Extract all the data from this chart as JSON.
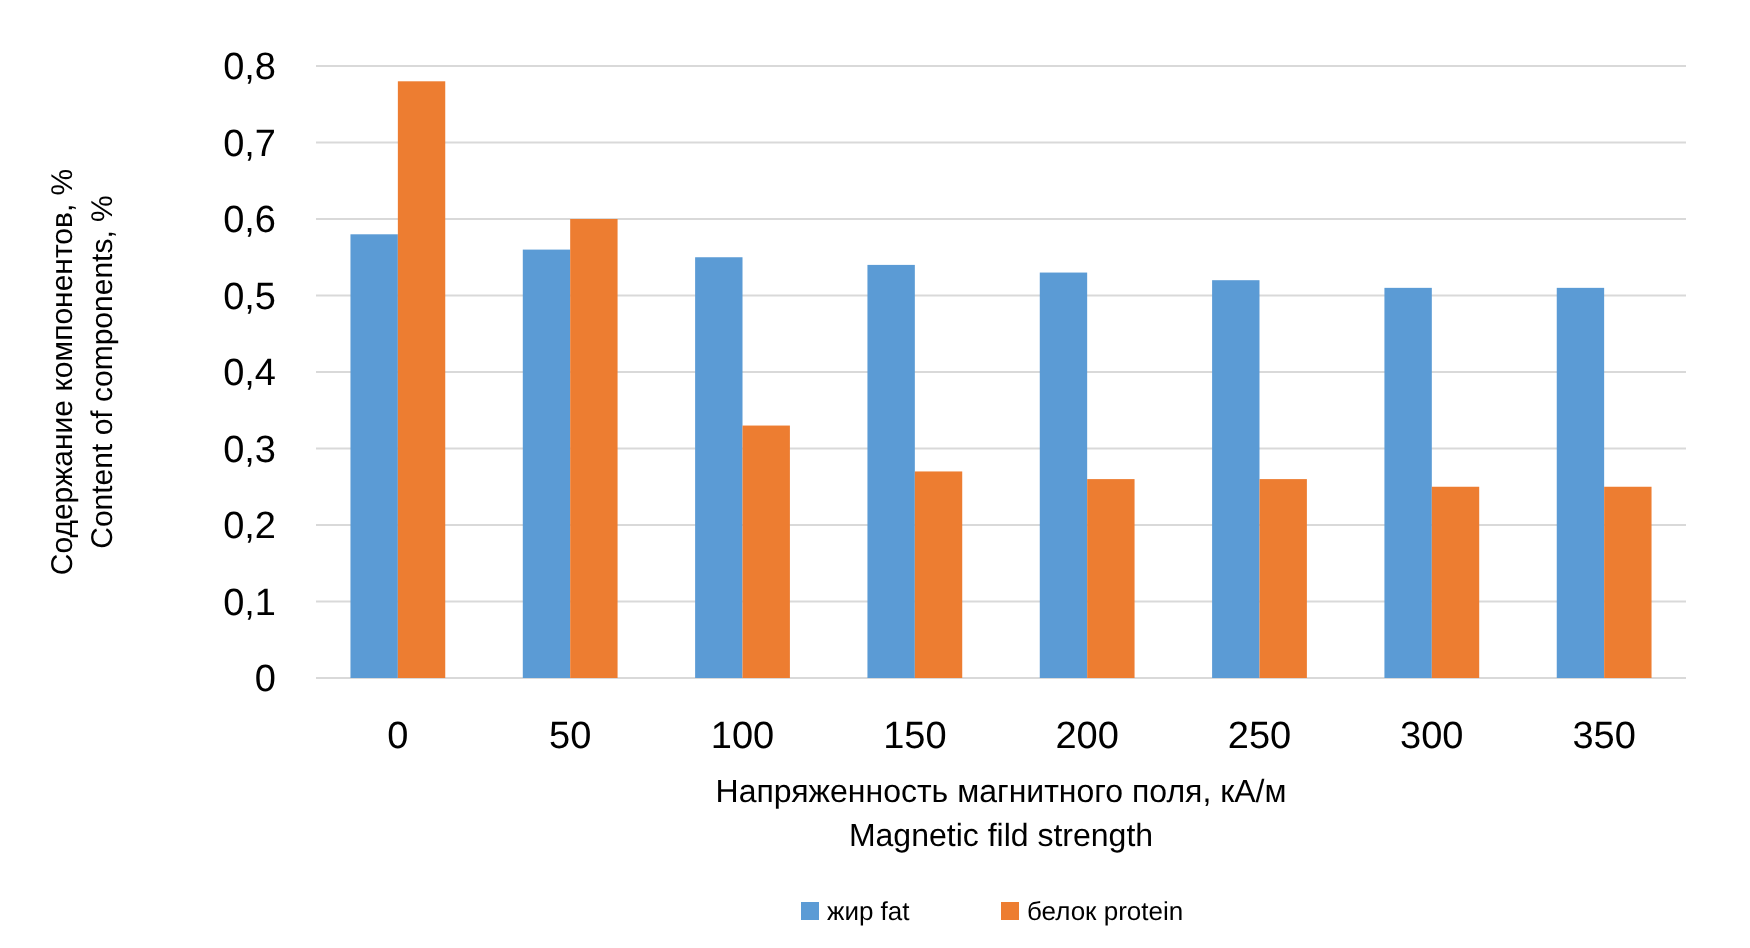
{
  "chart_data": {
    "type": "bar",
    "xlabel": "Напряженность магнитного поля, кА/м\nMagnetic fild strength",
    "ylabel": "Содержание компонентов, %\nContent of components, %",
    "categories": [
      "0",
      "50",
      "100",
      "150",
      "200",
      "250",
      "300",
      "350"
    ],
    "series": [
      {
        "name": "жир fat",
        "color": "#5b9bd5",
        "values": [
          0.58,
          0.56,
          0.55,
          0.54,
          0.53,
          0.52,
          0.51,
          0.51
        ]
      },
      {
        "name": "белок protein",
        "color": "#ed7d31",
        "values": [
          0.78,
          0.6,
          0.33,
          0.27,
          0.26,
          0.26,
          0.25,
          0.25
        ]
      }
    ],
    "ylim": [
      0,
      0.8
    ],
    "yticks": [
      {
        "value": 0,
        "label": "0"
      },
      {
        "value": 0.1,
        "label": "0,1"
      },
      {
        "value": 0.2,
        "label": "0,2"
      },
      {
        "value": 0.3,
        "label": "0,3"
      },
      {
        "value": 0.4,
        "label": "0,4"
      },
      {
        "value": 0.5,
        "label": "0,5"
      },
      {
        "value": 0.6,
        "label": "0,6"
      },
      {
        "value": 0.7,
        "label": "0,7"
      },
      {
        "value": 0.8,
        "label": "0,8"
      }
    ],
    "grid": true,
    "legend": "bottom"
  }
}
